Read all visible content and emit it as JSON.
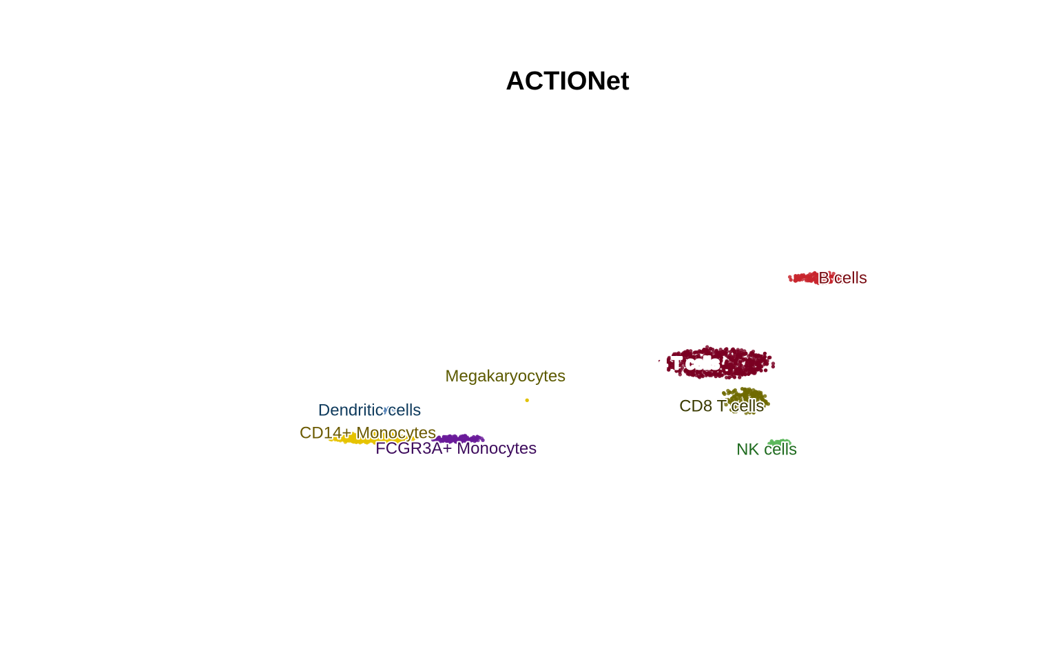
{
  "chart_data": {
    "type": "scatter",
    "title": "ACTIONet",
    "xlabel": "",
    "ylabel": "",
    "xlim": [
      0,
      100
    ],
    "ylim": [
      0,
      100
    ],
    "grid": false,
    "axes_visible": false,
    "clusters": [
      {
        "label": "B cells",
        "color": "#c8262e",
        "label_color": "#7a0d14",
        "center": [
          79.3,
          66.2
        ],
        "spread": [
          3.7,
          0.9
        ],
        "n": 160
      },
      {
        "label": "CD4 T cells",
        "color": "#7a0022",
        "label_color": "#ffffff",
        "label_outline": "#4a0014",
        "center": [
          66.9,
          49.7
        ],
        "spread": [
          6.1,
          2.7
        ],
        "n": 620
      },
      {
        "label": "CD8 T cells",
        "color": "#6f6a00",
        "label_color": "#3a3a00",
        "center": [
          70.2,
          42.4
        ],
        "spread": [
          2.6,
          2.3
        ],
        "n": 180
      },
      {
        "label": "NK cells",
        "color": "#5cb85c",
        "label_color": "#1f6b1f",
        "center": [
          74.3,
          34.1
        ],
        "spread": [
          1.2,
          0.6
        ],
        "n": 50
      },
      {
        "label": "Megakaryocytes",
        "color": "#e0c000",
        "label_color": "#5c5a00",
        "center": [
          45.0,
          42.5
        ],
        "spread": [
          0.1,
          0.1
        ],
        "n": 1
      },
      {
        "label": "Dendritic cells",
        "color": "#4f7fb5",
        "label_color": "#0e3a5c",
        "center": [
          29.6,
          40.3
        ],
        "spread": [
          1.3,
          0.8
        ],
        "n": 12
      },
      {
        "label": "CD14+ Monocytes",
        "color": "#e6c300",
        "label_color": "#6b5a00",
        "center": [
          27.1,
          35.2
        ],
        "spread": [
          4.6,
          0.9
        ],
        "n": 380
      },
      {
        "label": "FCGR3A+ Monocytes",
        "color": "#6a1b9a",
        "label_color": "#3d0b5c",
        "center": [
          37.0,
          35.0
        ],
        "spread": [
          2.9,
          0.6
        ],
        "n": 130
      }
    ],
    "labels": [
      {
        "text": "B cells",
        "x": 81.5,
        "y": 66.2
      },
      {
        "text": "CD4 T cells",
        "x": 62.3,
        "y": 49.7
      },
      {
        "text": "CD8 T cells",
        "x": 67.5,
        "y": 41.4
      },
      {
        "text": "NK cells",
        "x": 72.7,
        "y": 33.0
      },
      {
        "text": "Megakaryocytes",
        "x": 42.5,
        "y": 47.2
      },
      {
        "text": "Dendritic cells",
        "x": 26.8,
        "y": 40.6
      },
      {
        "text": "CD14+ Monocytes",
        "x": 26.6,
        "y": 36.2
      },
      {
        "text": "FCGR3A+ Monocytes",
        "x": 36.8,
        "y": 33.2
      }
    ]
  }
}
